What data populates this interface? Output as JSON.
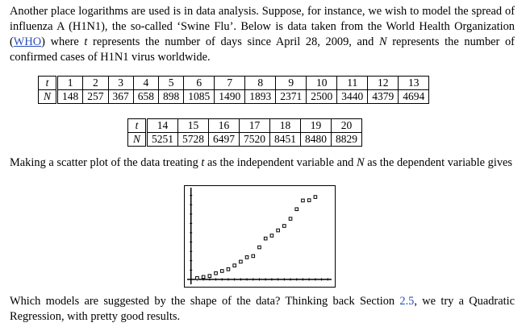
{
  "para1": {
    "t1": "Another place logarithms are used is in data analysis. Suppose, for instance, we wish to model the spread of influenza A (H1N1), the so-called ‘Swine Flu’. Below is data taken from the World Health Organization (",
    "who_link": "WHO",
    "t2": ") where ",
    "var_t": "t",
    "t3": " represents the number of days since April 28, 2009, and ",
    "var_N": "N",
    "t4": " represents the number of confirmed cases of H1N1 virus worldwide."
  },
  "table1": {
    "t_label": "t",
    "n_label": "N",
    "t": [
      "1",
      "2",
      "3",
      "4",
      "5",
      "6",
      "7",
      "8",
      "9",
      "10",
      "11",
      "12",
      "13"
    ],
    "N": [
      "148",
      "257",
      "367",
      "658",
      "898",
      "1085",
      "1490",
      "1893",
      "2371",
      "2500",
      "3440",
      "4379",
      "4694"
    ]
  },
  "table2": {
    "t_label": "t",
    "n_label": "N",
    "t": [
      "14",
      "15",
      "16",
      "17",
      "18",
      "19",
      "20"
    ],
    "N": [
      "5251",
      "5728",
      "6497",
      "7520",
      "8451",
      "8480",
      "8829"
    ]
  },
  "para2": {
    "t1": "Making a scatter plot of the data treating ",
    "var_t": "t",
    "t2": " as the independent variable and ",
    "var_N": "N",
    "t3": " as the dependent variable gives"
  },
  "chart_data": {
    "type": "scatter",
    "x": [
      1,
      2,
      3,
      4,
      5,
      6,
      7,
      8,
      9,
      10,
      11,
      12,
      13,
      14,
      15,
      16,
      17,
      18,
      19,
      20
    ],
    "y": [
      148,
      257,
      367,
      658,
      898,
      1085,
      1490,
      1893,
      2371,
      2500,
      3440,
      4379,
      4694,
      5251,
      5728,
      6497,
      7520,
      8451,
      8480,
      8829
    ],
    "xlim": [
      -1,
      23
    ],
    "ylim": [
      -700,
      10000
    ],
    "grid": false,
    "marker": "hollow-square",
    "axis_ticks": true
  },
  "para3": {
    "t1": "Which models are suggested by the shape of the data? Thinking back Section ",
    "section_link": "2.5",
    "t2": ", we try a Quadratic Regression, with pretty good results."
  }
}
